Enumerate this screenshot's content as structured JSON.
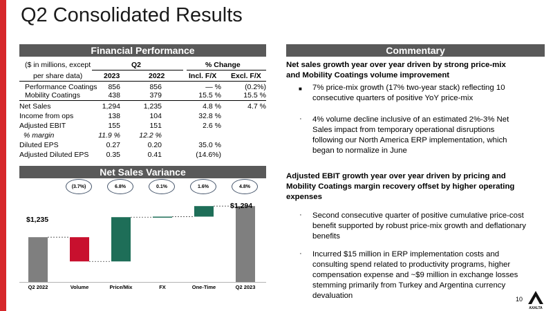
{
  "title": "Q2 Consolidated Results",
  "financial": {
    "header": "Financial Performance",
    "col_label_line1": "($ in millions, except",
    "col_label_line2": "per share data)",
    "q2_label": "Q2",
    "pct_change_label": "% Change",
    "year1": "2023",
    "year2": "2022",
    "incl_fx": "Incl. F/X",
    "excl_fx": "Excl. F/X",
    "rows": [
      {
        "label": "Performance Coatings",
        "y2023": "856",
        "y2022": "856",
        "incl": "— %",
        "excl": "(0.2%)"
      },
      {
        "label": "Mobility Coatings",
        "y2023": "438",
        "y2022": "379",
        "incl": "15.5 %",
        "excl": "15.5 %"
      },
      {
        "label": "Net Sales",
        "y2023": "1,294",
        "y2022": "1,235",
        "incl": "4.8 %",
        "excl": "4.7 %"
      },
      {
        "label": "Income from ops",
        "y2023": "138",
        "y2022": "104",
        "incl": "32.8 %",
        "excl": ""
      },
      {
        "label": "Adjusted EBIT",
        "y2023": "155",
        "y2022": "151",
        "incl": "2.6 %",
        "excl": ""
      },
      {
        "label": "% margin",
        "y2023": "11.9 %",
        "y2022": "12.2 %",
        "incl": "",
        "excl": ""
      },
      {
        "label": "Diluted EPS",
        "y2023": "0.27",
        "y2022": "0.20",
        "incl": "35.0 %",
        "excl": ""
      },
      {
        "label": "Adjusted Diluted EPS",
        "y2023": "0.35",
        "y2022": "0.41",
        "incl": "(14.6%)",
        "excl": ""
      }
    ]
  },
  "variance": {
    "header": "Net Sales Variance",
    "pills": [
      "(3.7%)",
      "6.8%",
      "0.1%",
      "1.6%",
      "4.8%"
    ],
    "start_label": "$1,235",
    "end_label": "$1,294"
  },
  "chart_data": {
    "type": "bar",
    "subtype": "waterfall",
    "categories": [
      "Q2 2022",
      "Volume",
      "Price/Mix",
      "FX",
      "One-Time",
      "Q2 2023"
    ],
    "values": [
      1235,
      -46,
      84,
      1,
      20,
      1294
    ],
    "percent_changes": [
      "(3.7%)",
      "6.8%",
      "0.1%",
      "1.6%",
      "4.8%"
    ],
    "colors": {
      "total": "#7f7f7f",
      "negative": "#c8102e",
      "positive": "#1e6e58"
    }
  },
  "commentary": {
    "header": "Commentary",
    "heading1_line1": "Net sales growth year over year driven by strong price-mix",
    "heading1_line2": "and Mobility Coatings volume improvement",
    "b1_line1": "7% price-mix growth (17% two-year stack) reflecting 10",
    "b1_line2": "consecutive quarters of positive YoY price-mix",
    "b2_line1": "4% volume decline inclusive of an estimated 2%-3% Net",
    "b2_line2": "Sales impact from temporary operational disruptions",
    "b2_line3": "following our North America ERP implementation, which",
    "b2_line4": "began to normalize in June",
    "heading2_line1": "Adjusted EBIT growth year over year driven by pricing and",
    "heading2_line2": "Mobility Coatings margin recovery offset by higher operating",
    "heading2_line3": "expenses",
    "b3_line1": "Second consecutive quarter of positive cumulative price-cost",
    "b3_line2": "benefit supported by robust price-mix growth and deflationary",
    "b3_line3": "benefits",
    "b4_line1": "Incurred $15 million in ERP implementation costs and",
    "b4_line2": "consulting spend related to productivity programs, higher",
    "b4_line3": "compensation expense and ~$9 million in exchange losses",
    "b4_line4": "stemming primarily from Turkey and Argentina currency",
    "b4_line5": "devaluation"
  },
  "page_number": "10",
  "logo_text": "AXALTA"
}
